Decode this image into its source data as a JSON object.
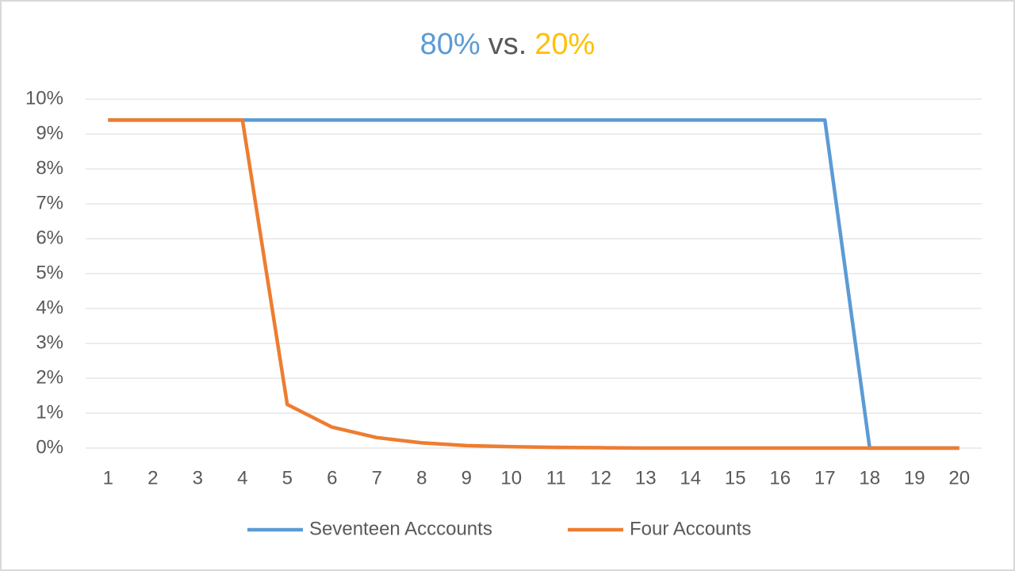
{
  "chart_data": {
    "type": "line",
    "title": [
      {
        "text": "80%",
        "color": "#5b9bd5"
      },
      {
        "text": "vs.",
        "color": "#595959"
      },
      {
        "text": "20%",
        "color": "#ffc000"
      }
    ],
    "x": [
      1,
      2,
      3,
      4,
      5,
      6,
      7,
      8,
      9,
      10,
      11,
      12,
      13,
      14,
      15,
      16,
      17,
      18,
      19,
      20
    ],
    "series": [
      {
        "name": "Seventeen Acccounts",
        "color": "#5b9bd5",
        "values": [
          9.4,
          9.4,
          9.4,
          9.4,
          9.4,
          9.4,
          9.4,
          9.4,
          9.4,
          9.4,
          9.4,
          9.4,
          9.4,
          9.4,
          9.4,
          9.4,
          9.4,
          0,
          0,
          0
        ]
      },
      {
        "name": "Four Accounts",
        "color": "#ed7d31",
        "values": [
          9.4,
          9.4,
          9.4,
          9.4,
          1.25,
          0.6,
          0.3,
          0.15,
          0.07,
          0.04,
          0.02,
          0.01,
          0,
          0,
          0,
          0,
          0,
          0,
          0,
          0
        ]
      }
    ],
    "ylim": [
      0,
      10
    ],
    "yticks": [
      {
        "value": 0,
        "label": "0%"
      },
      {
        "value": 1,
        "label": "1%"
      },
      {
        "value": 2,
        "label": "2%"
      },
      {
        "value": 3,
        "label": "3%"
      },
      {
        "value": 4,
        "label": "4%"
      },
      {
        "value": 5,
        "label": "5%"
      },
      {
        "value": 6,
        "label": "6%"
      },
      {
        "value": 7,
        "label": "7%"
      },
      {
        "value": 8,
        "label": "8%"
      },
      {
        "value": 9,
        "label": "9%"
      },
      {
        "value": 10,
        "label": "10%"
      }
    ],
    "grid": true,
    "legend": "bottom"
  }
}
